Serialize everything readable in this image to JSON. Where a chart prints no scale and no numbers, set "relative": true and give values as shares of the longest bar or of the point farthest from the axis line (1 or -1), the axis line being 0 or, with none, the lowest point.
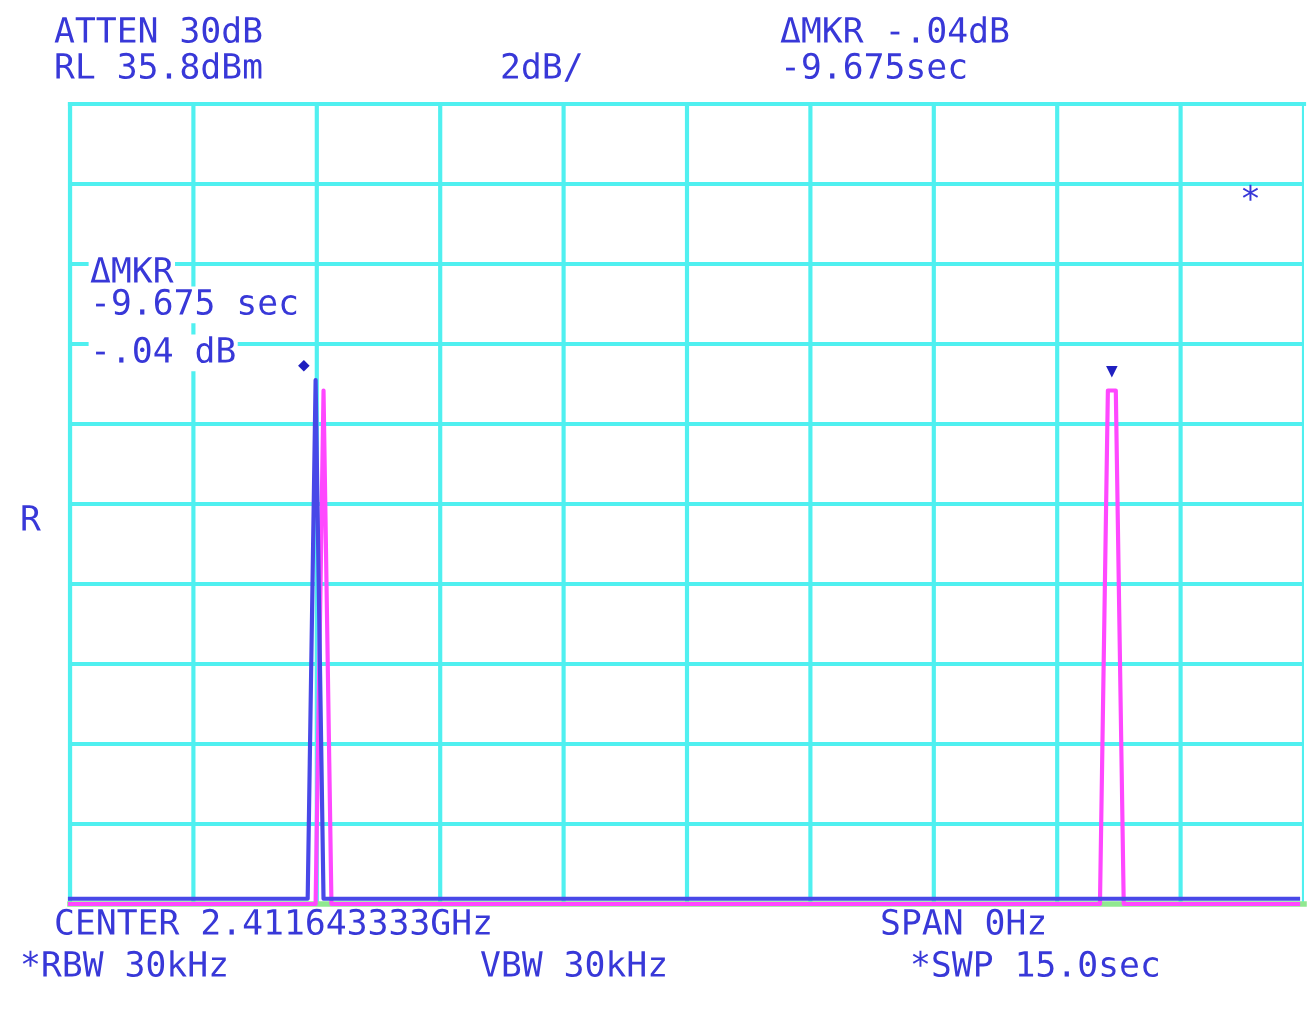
{
  "chart_data": {
    "type": "line",
    "relative": true,
    "grid": true,
    "categories": [
      null,
      null,
      null,
      null,
      null,
      null,
      null,
      null,
      null,
      null,
      null,
      null,
      null,
      null,
      null,
      null,
      null,
      null,
      null,
      null,
      null,
      null,
      null,
      null,
      null,
      null,
      null,
      null,
      null,
      null,
      null,
      null,
      null,
      null,
      null,
      null,
      null,
      null,
      null,
      null,
      null,
      null,
      null,
      null,
      null,
      null,
      null,
      null,
      null,
      null,
      null,
      null,
      null,
      null,
      null,
      null,
      null,
      null,
      null,
      null,
      null,
      null,
      null,
      null,
      null,
      null,
      null,
      null,
      null,
      null,
      null,
      null,
      null,
      null,
      null,
      null,
      null,
      null,
      null,
      null,
      null,
      null,
      null,
      null,
      null,
      null,
      null,
      null,
      null,
      null,
      null,
      null,
      null,
      null,
      null,
      null,
      null,
      null,
      null,
      null,
      null,
      null,
      null,
      null,
      null,
      null,
      null,
      null,
      null,
      null,
      null,
      null,
      null,
      null,
      null,
      null,
      null,
      null,
      null,
      null,
      null,
      null,
      null,
      null,
      null,
      null,
      null,
      null,
      null,
      null,
      null,
      null,
      null,
      null,
      null,
      null,
      null,
      null,
      null,
      null,
      null,
      null,
      null,
      null,
      null,
      null,
      null,
      null,
      null,
      null,
      null,
      null,
      null,
      null,
      null,
      null
    ],
    "series": [
      {
        "color": "#4848e8",
        "values": [
          0.01,
          0.01,
          0.01,
          0.01,
          0.01,
          0.01,
          0.01,
          0.01,
          0.01,
          0.01,
          0.01,
          0.01,
          0.01,
          0.01,
          0.01,
          0.01,
          0.01,
          0.01,
          0.01,
          0.01,
          0.01,
          0.01,
          0.01,
          0.01,
          0.01,
          0.01,
          0.01,
          0.01,
          0.01,
          0.01,
          0.01,
          1,
          0.01,
          0.01,
          0.01,
          0.01,
          0.01,
          0.01,
          0.01,
          0.01,
          0.01,
          0.01,
          0.01,
          0.01,
          0.01,
          0.01,
          0.01,
          0.01,
          0.01,
          0.01,
          0.01,
          0.01,
          0.01,
          0.01,
          0.01,
          0.01,
          0.01,
          0.01,
          0.01,
          0.01,
          0.01,
          0.01,
          0.01,
          0.01,
          0.01,
          0.01,
          0.01,
          0.01,
          0.01,
          0.01,
          0.01,
          0.01,
          0.01,
          0.01,
          0.01,
          0.01,
          0.01,
          0.01,
          0.01,
          0.01,
          0.01,
          0.01,
          0.01,
          0.01,
          0.01,
          0.01,
          0.01,
          0.01,
          0.01,
          0.01,
          0.01,
          0.01,
          0.01,
          0.01,
          0.01,
          0.01,
          0.01,
          0.01,
          0.01,
          0.01,
          0.01,
          0.01,
          0.01,
          0.01,
          0.01,
          0.01,
          0.01,
          0.01,
          0.01,
          0.01,
          0.01,
          0.01,
          0.01,
          0.01,
          0.01,
          0.01,
          0.01,
          0.01,
          0.01,
          0.01,
          0.01,
          0.01,
          0.01,
          0.01,
          0.01,
          0.01,
          0.01,
          0.01,
          0.01,
          0.01,
          0.01,
          0.01,
          0.01,
          0.01,
          0.01,
          0.01,
          0.01,
          0.01,
          0.01,
          0.01,
          0.01,
          0.01,
          0.01,
          0.01,
          0.01,
          0.01,
          0.01,
          0.01,
          0.01,
          0.01,
          0.01,
          0.01,
          0.01,
          0.01,
          0.01,
          0.01
        ]
      },
      {
        "color": "#ff48ff",
        "values": [
          0,
          0,
          0,
          0,
          0,
          0,
          0,
          0,
          0,
          0,
          0,
          0,
          0,
          0,
          0,
          0,
          0,
          0,
          0,
          0,
          0,
          0,
          0,
          0,
          0,
          0,
          0,
          0,
          0,
          0,
          0,
          0,
          0.98,
          0,
          0,
          0,
          0,
          0,
          0,
          0,
          0,
          0,
          0,
          0,
          0,
          0,
          0,
          0,
          0,
          0,
          0,
          0,
          0,
          0,
          0,
          0,
          0,
          0,
          0,
          0,
          0,
          0,
          0,
          0,
          0,
          0,
          0,
          0,
          0,
          0,
          0,
          0,
          0,
          0,
          0,
          0,
          0,
          0,
          0,
          0,
          0,
          0,
          0,
          0,
          0,
          0,
          0,
          0,
          0,
          0,
          0,
          0,
          0,
          0,
          0,
          0,
          0,
          0,
          0,
          0,
          0,
          0,
          0,
          0,
          0,
          0,
          0,
          0,
          0,
          0,
          0,
          0,
          0,
          0,
          0,
          0,
          0,
          0,
          0,
          0,
          0,
          0,
          0,
          0,
          0,
          0,
          0,
          0,
          0,
          0,
          0,
          0.98,
          0.98,
          0,
          0,
          0,
          0,
          0,
          0,
          0,
          0,
          0,
          0,
          0,
          0,
          0,
          0,
          0,
          0,
          0,
          0,
          0,
          0,
          0,
          0,
          0
        ]
      }
    ],
    "annotations": [
      "◆",
      "▼",
      "ATTEN 30dB",
      "RL 35.8dBm",
      "2dB/",
      "ΔMKR -.04dB",
      "-9.675sec",
      "ΔMKR",
      "-9.675 sec",
      "-.04 dB",
      "*",
      "R",
      "CENTER 2.411643333GHz",
      "SPAN 0Hz",
      "*RBW 30kHz",
      "VBW 30kHz",
      "*SWP 15.0sec"
    ]
  }
}
